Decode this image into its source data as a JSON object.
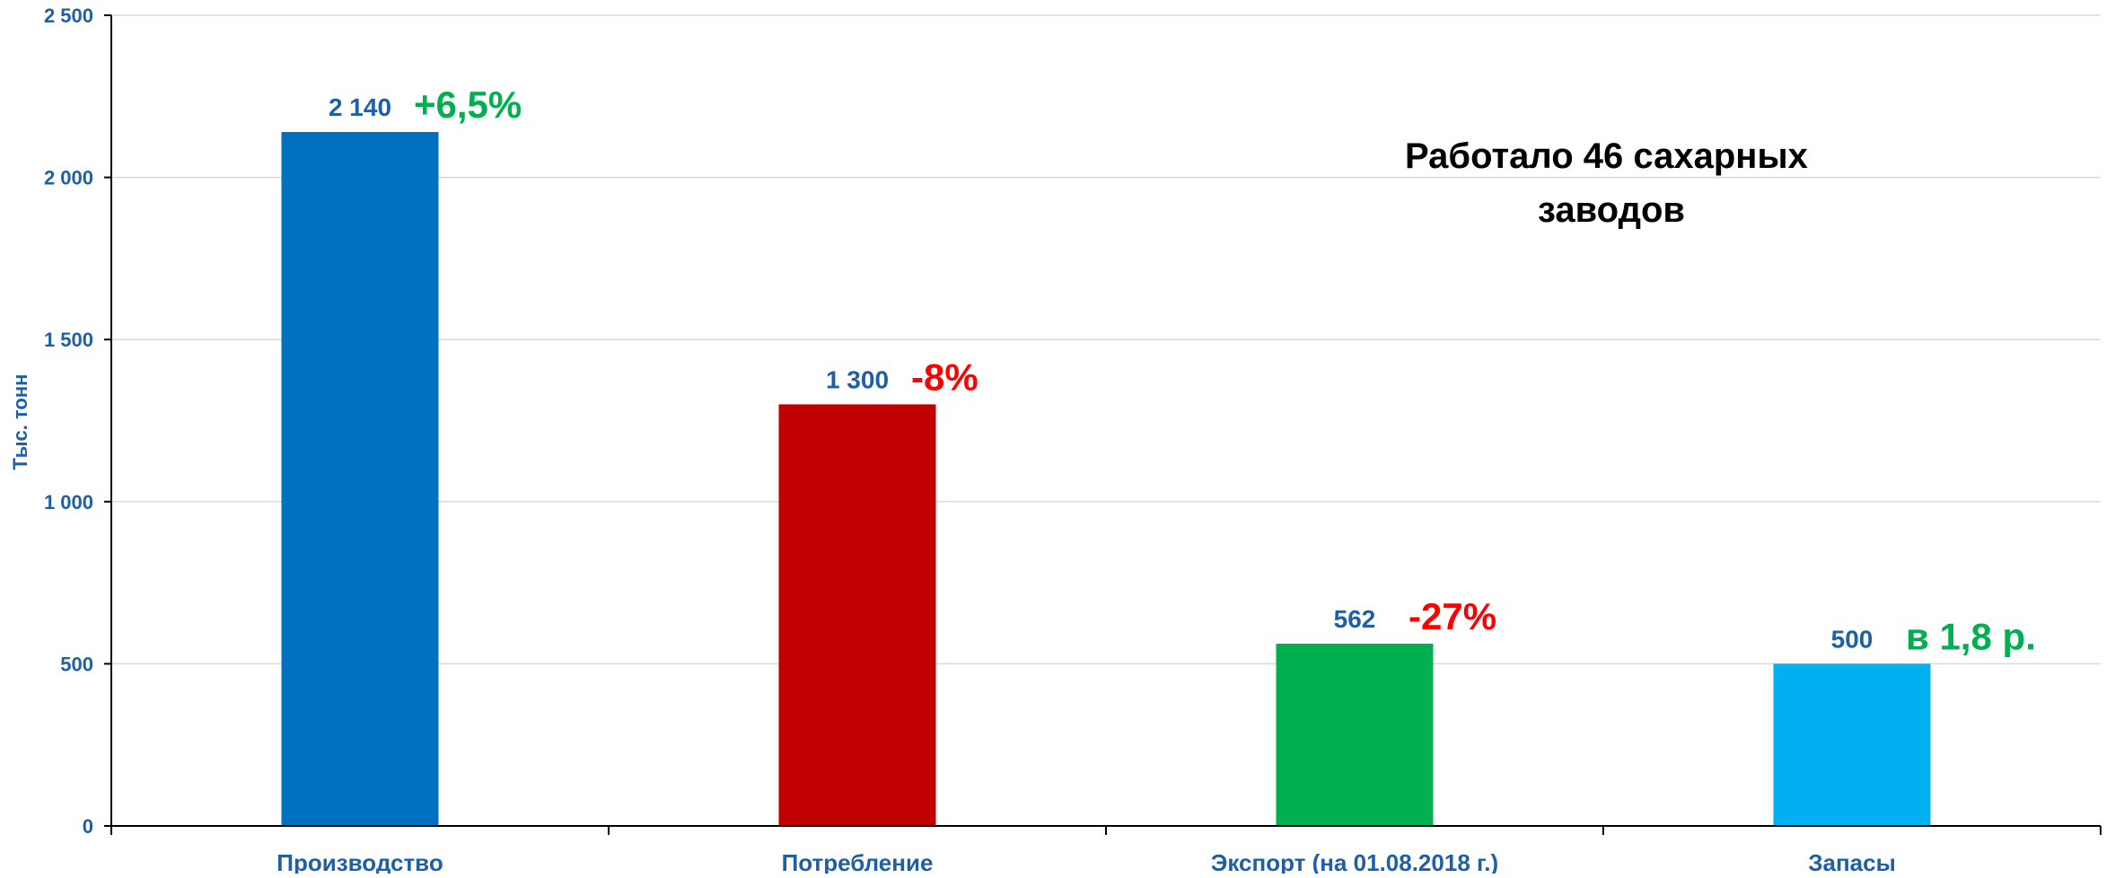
{
  "chart_data": {
    "type": "bar",
    "title": "",
    "xlabel": "",
    "ylabel": "Тыс. тонн",
    "ylim": [
      0,
      2500
    ],
    "yticks": [
      0,
      500,
      1000,
      1500,
      2000,
      2500
    ],
    "ytick_labels": [
      "0",
      "500",
      "1 000",
      "1 500",
      "2 000",
      "2 500"
    ],
    "grid": true,
    "categories": [
      "Производство",
      "Потребление",
      "Экспорт (на 01.08.2018 г.)",
      "Запасы"
    ],
    "values": [
      2140,
      1300,
      562,
      500
    ],
    "value_labels": [
      "2 140",
      "1 300",
      "562",
      "500"
    ],
    "bar_colors": [
      "#0070c0",
      "#c00000",
      "#00b050",
      "#00b0f0"
    ],
    "changes": [
      "+6,5%",
      "-8%",
      "-27%",
      "в 1,8 р."
    ],
    "change_colors": [
      "#00b050",
      "#ff0000",
      "#ff0000",
      "#00b050"
    ],
    "annotation_lines": [
      "Работало 46 сахарных",
      "заводов"
    ]
  }
}
